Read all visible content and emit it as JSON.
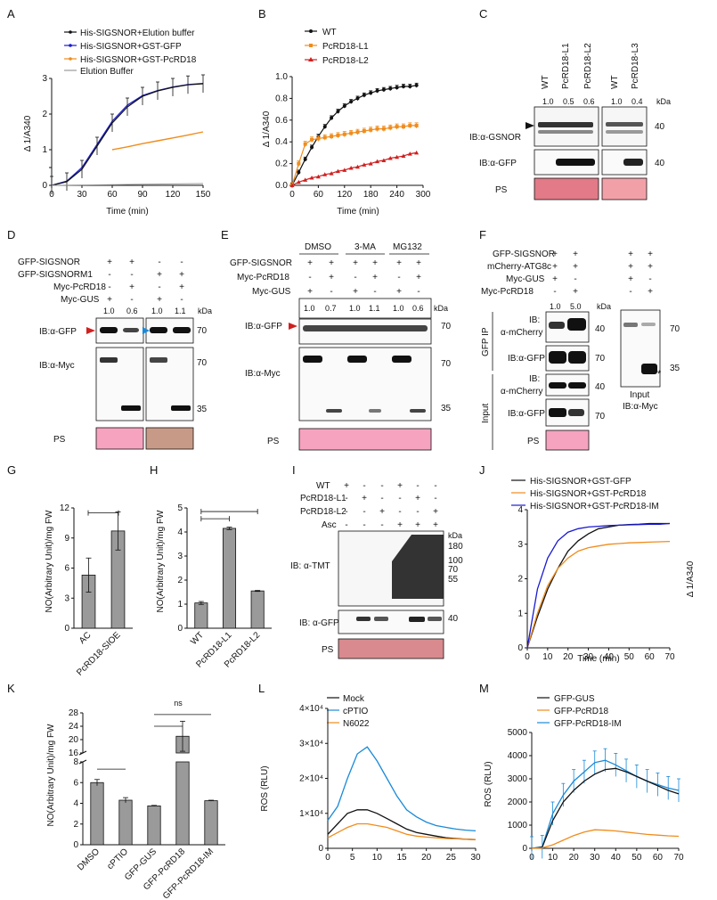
{
  "colors": {
    "black": "#111111",
    "blue": "#1a1ad0",
    "orange": "#f08c1c",
    "gray": "#9a9a9a",
    "red": "#d02020",
    "lightblue": "#1a8ad8",
    "pink": "#f3a4c1"
  },
  "panels": {
    "A": {
      "label": "A",
      "legend": [
        "His-SIGSNOR+Elution buffer",
        "His-SIGSNOR+GST-GFP",
        "His-SIGSNOR+GST-PcRD18",
        "Elution Buffer"
      ],
      "ylabel": "Δ 1/A340",
      "xlabel": "Time (min)"
    },
    "B": {
      "label": "B",
      "legend": [
        "WT",
        "PcRD18-L1",
        "PcRD18-L2"
      ],
      "ylabel": "Δ 1/A340",
      "xlabel": "Time (min)"
    },
    "C": {
      "label": "C",
      "lanes": [
        "WT",
        "PcRD18-L1",
        "PcRD18-L2",
        "WT",
        "PcRD18-L3"
      ],
      "ratios": [
        "1.0",
        "0.5",
        "0.6",
        "1.0",
        "0.4"
      ],
      "kda": "kDa",
      "blots": [
        "IB:α-GSNOR",
        "IB:α-GFP",
        "PS"
      ],
      "markers": [
        "40",
        "40"
      ]
    },
    "D": {
      "label": "D",
      "rows": [
        "GFP-SIGSNOR",
        "GFP-SIGSNORM1",
        "Myc-PcRD18",
        "Myc-GUS"
      ],
      "signs": [
        [
          "+",
          "+",
          "-",
          "-"
        ],
        [
          "-",
          "-",
          "+",
          "+"
        ],
        [
          "-",
          "+",
          "-",
          "+"
        ],
        [
          "+",
          "-",
          "+",
          "-"
        ]
      ],
      "ratios": [
        "1.0",
        "0.6",
        "1.0",
        "1.1"
      ],
      "kda": "kDa",
      "blots": [
        "IB:α-GFP",
        "IB:α-Myc",
        "PS"
      ],
      "markers": [
        "70",
        "70",
        "35"
      ]
    },
    "E": {
      "label": "E",
      "treat": [
        "DMSO",
        "3-MA",
        "MG132"
      ],
      "rows": [
        "GFP-SIGSNOR",
        "Myc-PcRD18",
        "Myc-GUS"
      ],
      "signs": [
        [
          "+",
          "+",
          "+",
          "+",
          "+",
          "+"
        ],
        [
          "-",
          "+",
          "-",
          "+",
          "-",
          "+"
        ],
        [
          "+",
          "-",
          "+",
          "-",
          "+",
          "-"
        ]
      ],
      "ratios": [
        "1.0",
        "0.7",
        "1.0",
        "1.1",
        "1.0",
        "0.6"
      ],
      "kda": "kDa",
      "blots": [
        "IB:α-GFP",
        "IB:α-Myc",
        "PS"
      ],
      "markers": [
        "70",
        "70",
        "35"
      ]
    },
    "F": {
      "label": "F",
      "rows": [
        "GFP-SIGSNOR",
        "mCherry-ATG8c",
        "Myc-GUS",
        "Myc-PcRD18"
      ],
      "signs": [
        [
          "+",
          "+"
        ],
        [
          "+",
          "+"
        ],
        [
          "+",
          "-"
        ],
        [
          "-",
          "+"
        ]
      ],
      "ratios": [
        "1.0",
        "5.0"
      ],
      "kda": "kDa",
      "blots": [
        "IB:",
        "α-mCherry",
        "IB:α-GFP",
        "IB:",
        "α-mCherry",
        "IB:α-GFP",
        "PS"
      ],
      "groups": [
        "GFP IP",
        "Input"
      ],
      "markers": [
        "40",
        "70",
        "40",
        "70",
        "70",
        "35"
      ],
      "inset": "Input",
      "inset_ib": "IB:α-Myc"
    },
    "G": {
      "label": "G",
      "ylabel": "NO(Arbitrary Unit)/mg FW",
      "categories": [
        "AC",
        "PcRD18-SIOE"
      ],
      "values": [
        5.3,
        9.7
      ],
      "errors": [
        1.7,
        1.9
      ],
      "yticks": [
        "0",
        "3",
        "6",
        "9",
        "12"
      ]
    },
    "H": {
      "label": "H",
      "ylabel": "NO(Arbitrary Unit)/mg FW",
      "categories": [
        "WT",
        "PcRD18-L1",
        "PcRD18-L2"
      ],
      "values": [
        1.05,
        4.15,
        1.55
      ],
      "errors": [
        0.06,
        0.05,
        0.02
      ],
      "yticks": [
        "0",
        "1",
        "2",
        "3",
        "4",
        "5"
      ]
    },
    "I": {
      "label": "I",
      "rows": [
        "WT",
        "PcRD18-L1",
        "PcRD18-L2",
        "Asc"
      ],
      "signs": [
        [
          "+",
          "-",
          "-",
          "+",
          "-",
          "-"
        ],
        [
          "-",
          "+",
          "-",
          "-",
          "+",
          "-"
        ],
        [
          "-",
          "-",
          "+",
          "-",
          "-",
          "+"
        ],
        [
          "-",
          "-",
          "-",
          "+",
          "+",
          "+"
        ]
      ],
      "kda": "kDa",
      "blots": [
        "IB: α-TMT",
        "IB: α-GFP",
        "PS"
      ],
      "markers": [
        "180",
        "100",
        "70",
        "55",
        "40"
      ]
    },
    "J": {
      "label": "J",
      "legend": [
        "His-SIGSNOR+GST-GFP",
        "His-SIGSNOR+GST-PcRD18",
        "His-SIGSNOR+GST-PcRD18-IM"
      ],
      "ylabel": "Δ 1/A340",
      "xlabel": "Time (min)"
    },
    "K": {
      "label": "K",
      "ylabel": "NO(Arbitrary Unit)/mg FW",
      "categories": [
        "DMSO",
        "cPTIO",
        "GFP-GUS",
        "GFP-PcRD18",
        "GFP-PcRD18-IM"
      ],
      "values": [
        6.0,
        4.3,
        3.75,
        21.0,
        4.25
      ],
      "errors": [
        0.3,
        0.25,
        0.05,
        4.5,
        0.05
      ],
      "yticks_low": [
        "0",
        "2",
        "4",
        "6",
        "8"
      ],
      "yticks_high": [
        "16",
        "20",
        "24",
        "28"
      ],
      "ns": "ns"
    },
    "L": {
      "label": "L",
      "legend": [
        "Mock",
        "cPTIO",
        "N6022"
      ],
      "ylabel": "ROS (RLU)",
      "ytick_labels": [
        "0",
        "1×10⁴",
        "2×10⁴",
        "3×10⁴",
        "4×10⁴"
      ],
      "xticks": [
        "0",
        "5",
        "10",
        "15",
        "20",
        "25",
        "30"
      ]
    },
    "M": {
      "label": "M",
      "legend": [
        "GFP-GUS",
        "GFP-PcRD18",
        "GFP-PcRD18-IM"
      ],
      "ylabel": "ROS (RLU)",
      "yticks": [
        "0",
        "1000",
        "2000",
        "3000",
        "4000",
        "5000"
      ],
      "xticks": [
        "0",
        "10",
        "20",
        "30",
        "40",
        "50",
        "60",
        "70"
      ]
    }
  },
  "chart_data": [
    {
      "panel": "A",
      "type": "line",
      "title": "",
      "xlabel": "Time (min)",
      "ylabel": "Δ 1/A340",
      "xlim": [
        0,
        150
      ],
      "ylim": [
        0,
        3
      ],
      "series": [
        {
          "name": "His-SIGSNOR+Elution buffer",
          "x": [
            0,
            15,
            30,
            45,
            60,
            75,
            90,
            105,
            120,
            135,
            150
          ],
          "y": [
            0,
            0.1,
            0.45,
            1.1,
            1.75,
            2.2,
            2.5,
            2.65,
            2.75,
            2.82,
            2.85
          ]
        },
        {
          "name": "His-SIGSNOR+GST-GFP",
          "x": [
            0,
            15,
            30,
            45,
            60,
            75,
            90,
            105,
            120,
            135,
            150
          ],
          "y": [
            0,
            0.12,
            0.5,
            1.15,
            1.8,
            2.25,
            2.52,
            2.66,
            2.76,
            2.83,
            2.86
          ]
        },
        {
          "name": "His-SIGSNOR+GST-PcRD18",
          "x": [
            60,
            75,
            90,
            105,
            120,
            135,
            150
          ],
          "y": [
            1.0,
            1.08,
            1.17,
            1.25,
            1.33,
            1.41,
            1.5
          ]
        },
        {
          "name": "Elution Buffer",
          "x": [
            0,
            30,
            60,
            90,
            120,
            150
          ],
          "y": [
            0,
            0.01,
            0.02,
            0.03,
            0.04,
            0.05
          ]
        }
      ]
    },
    {
      "panel": "B",
      "type": "line",
      "xlabel": "Time (min)",
      "ylabel": "Δ 1/A340",
      "xlim": [
        0,
        300
      ],
      "ylim": [
        0,
        1.0
      ],
      "series": [
        {
          "name": "WT",
          "x": [
            0,
            15,
            30,
            45,
            60,
            75,
            90,
            105,
            120,
            135,
            150,
            165,
            180,
            195,
            210,
            225,
            240,
            255,
            270,
            285
          ],
          "y": [
            0,
            0.12,
            0.24,
            0.35,
            0.45,
            0.54,
            0.62,
            0.68,
            0.73,
            0.77,
            0.8,
            0.83,
            0.85,
            0.87,
            0.88,
            0.89,
            0.9,
            0.91,
            0.91,
            0.92
          ]
        },
        {
          "name": "PcRD18-L1",
          "x": [
            0,
            15,
            30,
            45,
            60,
            75,
            90,
            105,
            120,
            135,
            150,
            165,
            180,
            195,
            210,
            225,
            240,
            255,
            270,
            285
          ],
          "y": [
            0,
            0.2,
            0.38,
            0.42,
            0.43,
            0.44,
            0.45,
            0.46,
            0.47,
            0.48,
            0.49,
            0.5,
            0.51,
            0.52,
            0.52,
            0.53,
            0.54,
            0.54,
            0.55,
            0.55
          ]
        },
        {
          "name": "PcRD18-L2",
          "x": [
            0,
            15,
            30,
            45,
            60,
            75,
            90,
            105,
            120,
            135,
            150,
            165,
            180,
            195,
            210,
            225,
            240,
            255,
            270,
            285
          ],
          "y": [
            0,
            0.03,
            0.05,
            0.07,
            0.08,
            0.1,
            0.11,
            0.13,
            0.14,
            0.16,
            0.17,
            0.19,
            0.2,
            0.22,
            0.23,
            0.25,
            0.26,
            0.27,
            0.29,
            0.3
          ]
        }
      ]
    },
    {
      "panel": "G",
      "type": "bar",
      "categories": [
        "AC",
        "PcRD18-SIOE"
      ],
      "values": [
        5.3,
        9.7
      ],
      "ylabel": "NO(Arbitrary Unit)/mg FW",
      "ylim": [
        0,
        12
      ]
    },
    {
      "panel": "H",
      "type": "bar",
      "categories": [
        "WT",
        "PcRD18-L1",
        "PcRD18-L2"
      ],
      "values": [
        1.05,
        4.15,
        1.55
      ],
      "ylabel": "NO(Arbitrary Unit)/mg FW",
      "ylim": [
        0,
        5
      ]
    },
    {
      "panel": "J",
      "type": "line",
      "xlabel": "Time (min)",
      "ylabel": "Δ 1/A340",
      "xlim": [
        0,
        70
      ],
      "ylim": [
        0,
        4
      ],
      "series": [
        {
          "name": "His-SIGSNOR+GST-GFP",
          "x": [
            0,
            5,
            10,
            15,
            20,
            25,
            30,
            35,
            40,
            45,
            50,
            55,
            60,
            65,
            70
          ],
          "y": [
            0,
            0.9,
            1.7,
            2.3,
            2.8,
            3.1,
            3.3,
            3.45,
            3.5,
            3.55,
            3.57,
            3.58,
            3.6,
            3.6,
            3.6
          ]
        },
        {
          "name": "His-SIGSNOR+GST-PcRD18",
          "x": [
            0,
            5,
            10,
            15,
            20,
            25,
            30,
            35,
            40,
            45,
            50,
            55,
            60,
            65,
            70
          ],
          "y": [
            0,
            1.0,
            1.8,
            2.3,
            2.6,
            2.8,
            2.9,
            2.95,
            3.0,
            3.02,
            3.04,
            3.05,
            3.06,
            3.07,
            3.08
          ]
        },
        {
          "name": "His-SIGSNOR+GST-PcRD18-IM",
          "x": [
            0,
            5,
            10,
            15,
            20,
            25,
            30,
            35,
            40,
            45,
            50,
            55,
            60,
            65,
            70
          ],
          "y": [
            0,
            1.7,
            2.6,
            3.1,
            3.35,
            3.45,
            3.5,
            3.52,
            3.54,
            3.55,
            3.56,
            3.57,
            3.58,
            3.58,
            3.6
          ]
        }
      ]
    },
    {
      "panel": "K",
      "type": "bar",
      "categories": [
        "DMSO",
        "cPTIO",
        "GFP-GUS",
        "GFP-PcRD18",
        "GFP-PcRD18-IM"
      ],
      "values": [
        6.0,
        4.3,
        3.75,
        21.0,
        4.25
      ],
      "ylabel": "NO(Arbitrary Unit)/mg FW",
      "ylim": [
        0,
        28
      ]
    },
    {
      "panel": "L",
      "type": "line",
      "xlabel": "",
      "ylabel": "ROS (RLU)",
      "xlim": [
        0,
        30
      ],
      "ylim": [
        0,
        40000
      ],
      "series": [
        {
          "name": "Mock",
          "x": [
            0,
            2,
            4,
            6,
            8,
            10,
            12,
            14,
            16,
            18,
            20,
            22,
            24,
            26,
            28,
            30
          ],
          "y": [
            4000,
            7000,
            10000,
            11000,
            11000,
            10000,
            8500,
            7000,
            5500,
            4500,
            4000,
            3500,
            3000,
            2800,
            2600,
            2500
          ]
        },
        {
          "name": "cPTIO",
          "x": [
            0,
            2,
            4,
            6,
            8,
            10,
            12,
            14,
            16,
            18,
            20,
            22,
            24,
            26,
            28,
            30
          ],
          "y": [
            8000,
            12000,
            20000,
            27000,
            29000,
            25000,
            20000,
            15000,
            11000,
            9000,
            7500,
            6500,
            6000,
            5500,
            5200,
            5000
          ]
        },
        {
          "name": "N6022",
          "x": [
            0,
            2,
            4,
            6,
            8,
            10,
            12,
            14,
            16,
            18,
            20,
            22,
            24,
            26,
            28,
            30
          ],
          "y": [
            3000,
            4500,
            6000,
            7000,
            7000,
            6500,
            6000,
            5000,
            4000,
            3500,
            3200,
            3000,
            2800,
            2700,
            2600,
            2500
          ]
        }
      ]
    },
    {
      "panel": "M",
      "type": "line",
      "xlabel": "",
      "ylabel": "ROS (RLU)",
      "xlim": [
        0,
        70
      ],
      "ylim": [
        0,
        5000
      ],
      "series": [
        {
          "name": "GFP-GUS",
          "x": [
            0,
            5,
            10,
            15,
            20,
            25,
            30,
            35,
            40,
            45,
            50,
            55,
            60,
            65,
            70
          ],
          "y": [
            0,
            50,
            1200,
            2000,
            2500,
            2900,
            3200,
            3400,
            3450,
            3300,
            3100,
            2900,
            2700,
            2500,
            2350
          ]
        },
        {
          "name": "GFP-PcRD18",
          "x": [
            0,
            5,
            10,
            15,
            20,
            25,
            30,
            35,
            40,
            45,
            50,
            55,
            60,
            65,
            70
          ],
          "y": [
            0,
            20,
            150,
            350,
            550,
            700,
            800,
            780,
            750,
            700,
            650,
            600,
            570,
            540,
            520
          ]
        },
        {
          "name": "GFP-PcRD18-IM",
          "x": [
            0,
            5,
            10,
            15,
            20,
            25,
            30,
            35,
            40,
            45,
            50,
            55,
            60,
            65,
            70
          ],
          "y": [
            0,
            60,
            1500,
            2300,
            2900,
            3300,
            3700,
            3800,
            3600,
            3350,
            3100,
            2900,
            2750,
            2600,
            2500
          ]
        }
      ]
    }
  ]
}
